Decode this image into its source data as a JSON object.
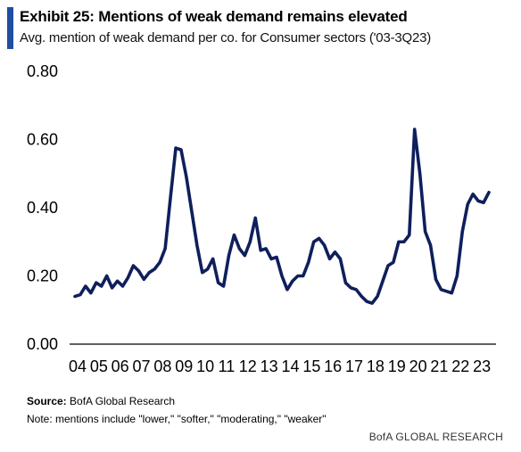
{
  "header": {
    "title": "Exhibit 25: Mentions of weak demand remains elevated",
    "subtitle": "Avg. mention of weak demand per co. for Consumer sectors ('03-3Q23)"
  },
  "footer": {
    "source_label": "Source:",
    "source_text": "BofA Global Research",
    "note": "Note: mentions include \"lower,\" \"softer,\" \"moderating,\" \"weaker\"",
    "brand": "BofA GLOBAL RESEARCH"
  },
  "colors": {
    "line": "#0f1f5c",
    "accent": "#1f4ea3",
    "axis": "#000000"
  },
  "chart_data": {
    "type": "line",
    "title": "Exhibit 25: Mentions of weak demand remains elevated",
    "subtitle": "Avg. mention of weak demand per co. for Consumer sectors ('03-3Q23)",
    "xlabel": "",
    "ylabel": "",
    "ylim": [
      0,
      0.8
    ],
    "y_ticks": [
      "0.00",
      "0.20",
      "0.40",
      "0.60",
      "0.80"
    ],
    "x_tick_labels": [
      "04",
      "05",
      "06",
      "07",
      "08",
      "09",
      "10",
      "11",
      "12",
      "13",
      "14",
      "15",
      "16",
      "17",
      "18",
      "19",
      "20",
      "21",
      "22",
      "23"
    ],
    "grid": false,
    "legend": "none",
    "series": [
      {
        "values": [
          0.14,
          0.145,
          0.17,
          0.15,
          0.18,
          0.17,
          0.2,
          0.165,
          0.185,
          0.17,
          0.195,
          0.23,
          0.215,
          0.19,
          0.21,
          0.22,
          0.24,
          0.28,
          0.43,
          0.575,
          0.57,
          0.49,
          0.39,
          0.29,
          0.21,
          0.22,
          0.25,
          0.18,
          0.17,
          0.26,
          0.32,
          0.28,
          0.26,
          0.3,
          0.37,
          0.275,
          0.28,
          0.25,
          0.255,
          0.2,
          0.16,
          0.185,
          0.2,
          0.2,
          0.24,
          0.3,
          0.31,
          0.29,
          0.25,
          0.27,
          0.25,
          0.18,
          0.165,
          0.16,
          0.14,
          0.125,
          0.12,
          0.14,
          0.185,
          0.23,
          0.24,
          0.3,
          0.3,
          0.32,
          0.63,
          0.5,
          0.33,
          0.29,
          0.19,
          0.16,
          0.155,
          0.15,
          0.2,
          0.33,
          0.41,
          0.44,
          0.42,
          0.415,
          0.445
        ]
      }
    ]
  }
}
